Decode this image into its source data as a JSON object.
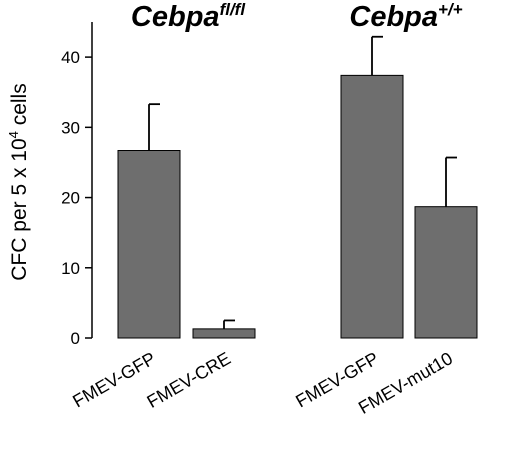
{
  "chart_data": {
    "type": "bar",
    "ylabel": "CFC per 5 x 10",
    "ylabel_sup": "4",
    "ylabel_tail": " cells",
    "ylim": [
      0,
      45
    ],
    "yticks": [
      0,
      10,
      20,
      30,
      40
    ],
    "grid": false,
    "groups": [
      {
        "name_main": "Cebpa",
        "name_sup": "fl/fl",
        "categories": [
          "FMEV-GFP",
          "FMEV-CRE"
        ]
      },
      {
        "name_main": "Cebpa",
        "name_sup": "+/+",
        "categories": [
          "FMEV-GFP",
          "FMEV-mut10"
        ]
      }
    ],
    "categories": [
      "FMEV-GFP",
      "FMEV-CRE",
      "FMEV-GFP",
      "FMEV-mut10"
    ],
    "values": [
      26.7,
      1.3,
      37.4,
      18.7
    ],
    "errors": [
      6.6,
      1.2,
      5.5,
      7.0
    ],
    "bar_color": "#6e6e6e",
    "error_direction": "upper"
  }
}
